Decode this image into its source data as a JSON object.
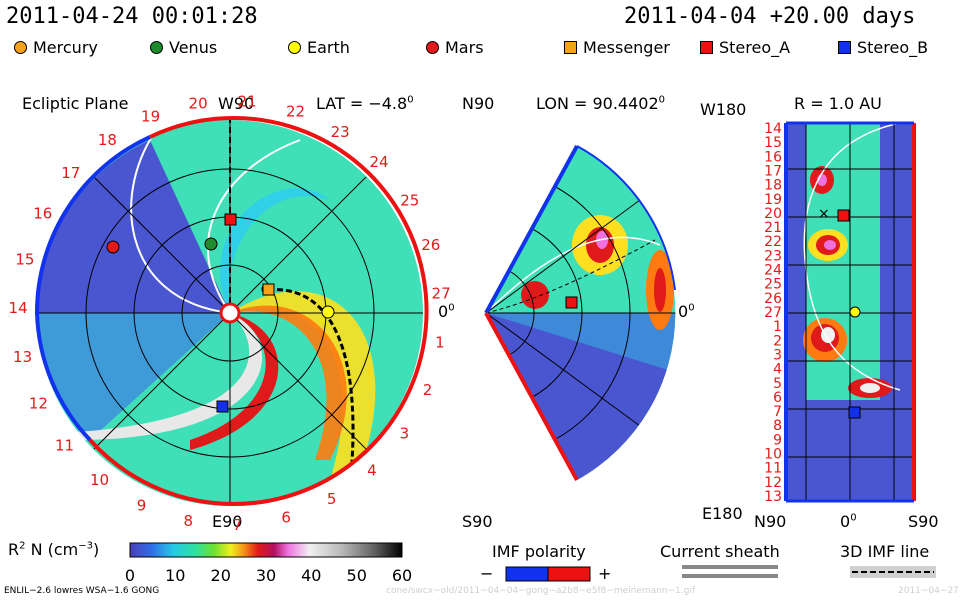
{
  "header": {
    "timestamp": "2011-04-24 00:01:28",
    "run_info": "2011-04-04 +20.00 days"
  },
  "legend": [
    {
      "label": "Mercury",
      "shape": "dot",
      "color": "#f6a21b"
    },
    {
      "label": "Venus",
      "shape": "dot",
      "color": "#1f8a2e"
    },
    {
      "label": "Earth",
      "shape": "dot",
      "color": "#ffff00"
    },
    {
      "label": "Mars",
      "shape": "dot",
      "color": "#e41a1a"
    },
    {
      "label": "Messenger",
      "shape": "square",
      "color": "#f6a21b"
    },
    {
      "label": "Stereo_A",
      "shape": "square",
      "color": "#ee1111"
    },
    {
      "label": "Stereo_B",
      "shape": "square",
      "color": "#1130e8"
    }
  ],
  "ecliptic": {
    "title": "Ecliptic Plane",
    "top_label": "W90",
    "lat_label": "LAT = −4.8",
    "lat_deg": "0",
    "bottom_label": "E90",
    "zero_label": "0",
    "zero_deg": "0",
    "carrington_ticks": [
      "19",
      "20",
      "21",
      "22",
      "23",
      "24",
      "25",
      "26",
      "27",
      "1",
      "2",
      "3",
      "4",
      "5",
      "6",
      "7",
      "8",
      "9",
      "10",
      "11",
      "12",
      "13",
      "14",
      "15",
      "16",
      "17",
      "18"
    ]
  },
  "meridional": {
    "top_label": "N90",
    "lon_label": "LON = 90.4402",
    "lon_deg": "0",
    "bottom_label": "S90",
    "zero_label": "0",
    "zero_deg": "0"
  },
  "r_panel": {
    "title": "R = 1.0 AU",
    "top_label": "W180",
    "bottom_label": "E180",
    "x_labels": [
      "N90",
      "0",
      "S90"
    ],
    "x_zero_deg": "0",
    "y_ticks": [
      "14",
      "15",
      "16",
      "17",
      "18",
      "19",
      "20",
      "21",
      "22",
      "23",
      "24",
      "25",
      "26",
      "27",
      "1",
      "2",
      "3",
      "4",
      "5",
      "6",
      "7",
      "8",
      "9",
      "10",
      "11",
      "12",
      "13"
    ]
  },
  "colorbar": {
    "label_r2": "R",
    "label_exp": "2",
    "label_rest": " N (cm",
    "label_unit_exp": "−3",
    "label_close": ")",
    "ticks": [
      "0",
      "10",
      "20",
      "30",
      "40",
      "50",
      "60"
    ],
    "min": 0,
    "max": 60
  },
  "imf_polarity": {
    "label": "IMF polarity",
    "minus": "−",
    "plus": "+",
    "neg_color": "#1133ee",
    "pos_color": "#ee1111"
  },
  "current_sheath": {
    "label": "Current sheath"
  },
  "imf_line": {
    "label": "3D IMF line"
  },
  "footer": {
    "model": "ENLIL−2.6 lowres WSA−1.6 GONG",
    "file": "cone/swcx−old/2011−04−04−gong−a2b8−e5f8−meinemann−1.gif",
    "date": "2011−04−27"
  },
  "chart_data": {
    "type": "heatmap",
    "title": "",
    "quantity": "R2 N (cm-3)",
    "color_range": [
      0,
      60
    ],
    "panels": [
      "Ecliptic Plane",
      "Meridional (LON = 90.4402)",
      "R = 1.0 AU"
    ],
    "bodies": {
      "ecliptic": [
        {
          "name": "Mercury",
          "angle_deg": 10,
          "r_au": 0.45
        },
        {
          "name": "Venus",
          "angle_deg": 100,
          "r_au": 0.72
        },
        {
          "name": "Earth",
          "angle_deg": 0,
          "r_au": 1.0
        },
        {
          "name": "Mars",
          "angle_deg": 150,
          "r_au": 1.45
        },
        {
          "name": "Messenger",
          "angle_deg": 12,
          "r_au": 0.45
        },
        {
          "name": "Stereo_A",
          "angle_deg": 89,
          "r_au": 0.98
        },
        {
          "name": "Stereo_B",
          "angle_deg": -93,
          "r_au": 1.0
        }
      ]
    }
  }
}
